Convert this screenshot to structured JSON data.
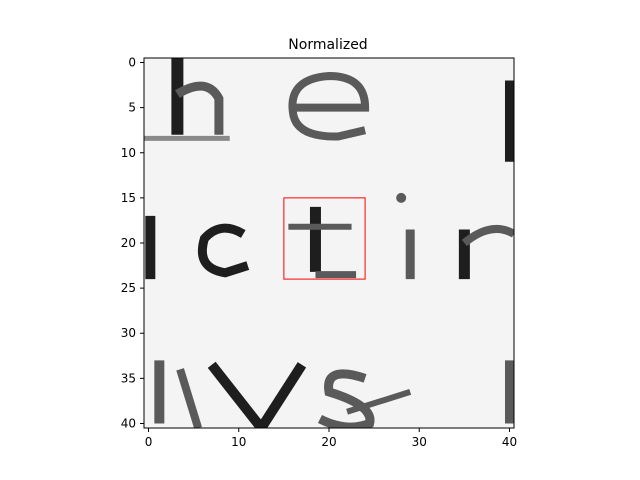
{
  "chart_data": {
    "type": "heatmap",
    "title": "Normalized",
    "xlabel": "",
    "ylabel": "",
    "xlim": [
      -0.5,
      40.5
    ],
    "ylim": [
      40.5,
      -0.5
    ],
    "x_ticks": [
      0,
      10,
      20,
      30,
      40
    ],
    "y_ticks": [
      0,
      5,
      10,
      15,
      20,
      25,
      30,
      35,
      40
    ],
    "grid": false,
    "colormap": "gray",
    "image_content": "scanned text crop with lines reading 'he s', 'ictin', 'vs'",
    "highlight_box": {
      "x0": 15,
      "y0": 15,
      "x1": 24,
      "y1": 24,
      "color": "#ff0000"
    }
  }
}
